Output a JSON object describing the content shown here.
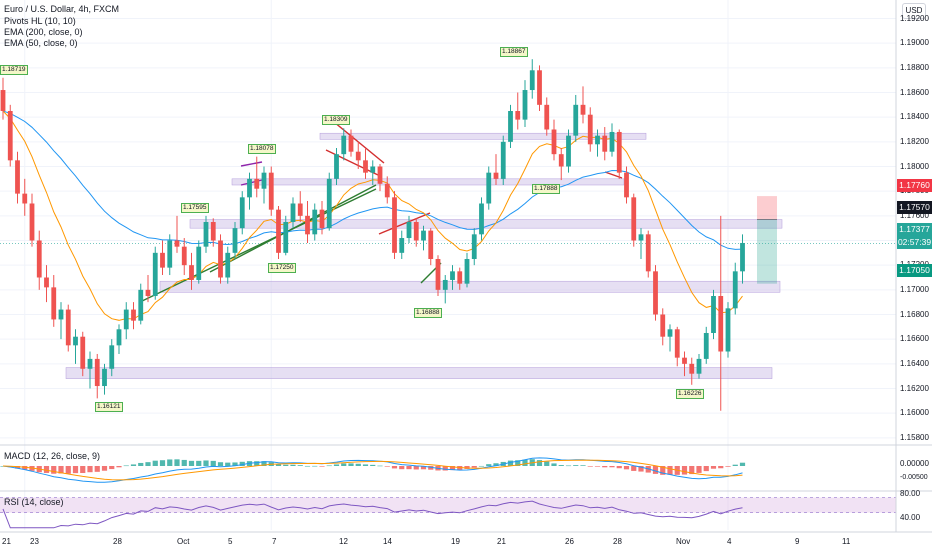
{
  "header": {
    "title": "Euro / U.S. Dollar, 4h, FXCM",
    "indicators": [
      "Pivots HL (10, 10)",
      "EMA (200, close, 0)",
      "EMA (50, close, 0)"
    ],
    "currency": "USD"
  },
  "price_scale": {
    "ticks": [
      "1.19200",
      "1.19000",
      "1.18800",
      "1.18600",
      "1.18400",
      "1.18200",
      "1.18000",
      "1.17800",
      "1.17600",
      "1.17400",
      "1.17200",
      "1.17000",
      "1.16800",
      "1.16600",
      "1.16400",
      "1.16200",
      "1.16000",
      "1.15800"
    ],
    "badges": {
      "stop": {
        "text": "1.17760",
        "color": "#f23645"
      },
      "entry": {
        "text": "1.17570",
        "color": "#131722"
      },
      "price": {
        "text": "1.17377",
        "color": "#26a69a"
      },
      "countdown": {
        "text": "02:57:39",
        "color": "#26a69a"
      },
      "target": {
        "text": "1.17050",
        "color": "#089981"
      }
    }
  },
  "time_axis": {
    "labels": [
      "21",
      "23",
      "28",
      "Oct",
      "5",
      "7",
      "12",
      "14",
      "19",
      "21",
      "26",
      "28",
      "Nov",
      "4",
      "9",
      "11"
    ]
  },
  "macd": {
    "label": "MACD (12, 26, close, 9)",
    "ticks": [
      "0.00000",
      "-0.00500"
    ]
  },
  "rsi": {
    "label": "RSI (14, close)",
    "ticks": [
      "80.00",
      "40.00"
    ]
  },
  "chart_data": {
    "type": "candlestick",
    "title": "Euro / U.S. Dollar, 4h, FXCM",
    "ylim": [
      1.1575,
      1.1935
    ],
    "last_price": 1.17377,
    "pivot_labels": [
      {
        "text": "1.18719",
        "price": 1.18719,
        "kind": "high"
      },
      {
        "text": "1.16121",
        "price": 1.16121,
        "kind": "low"
      },
      {
        "text": "1.17595",
        "price": 1.17595,
        "kind": "high"
      },
      {
        "text": "1.18078",
        "price": 1.18078,
        "kind": "high"
      },
      {
        "text": "1.17250",
        "price": 1.1725,
        "kind": "low"
      },
      {
        "text": "1.18309",
        "price": 1.18309,
        "kind": "high"
      },
      {
        "text": "1.16888",
        "price": 1.16888,
        "kind": "low"
      },
      {
        "text": "1.18867",
        "price": 1.18867,
        "kind": "high"
      },
      {
        "text": "1.17888",
        "price": 1.17888,
        "kind": "low"
      },
      {
        "text": "1.16226",
        "price": 1.16226,
        "kind": "low"
      }
    ],
    "support_resistance_zones": [
      [
        1.1628,
        1.1637
      ],
      [
        1.1698,
        1.1707
      ],
      [
        1.175,
        1.1757
      ],
      [
        1.1785,
        1.179
      ],
      [
        1.1822,
        1.1827
      ]
    ],
    "trade": {
      "stop": 1.1776,
      "entry": 1.1757,
      "target": 1.1705
    },
    "candles": [
      {
        "o": 1.1862,
        "h": 1.1872,
        "l": 1.1838,
        "c": 1.1845
      },
      {
        "o": 1.1845,
        "h": 1.185,
        "l": 1.18,
        "c": 1.1805
      },
      {
        "o": 1.1805,
        "h": 1.1812,
        "l": 1.177,
        "c": 1.1778
      },
      {
        "o": 1.1778,
        "h": 1.179,
        "l": 1.176,
        "c": 1.177
      },
      {
        "o": 1.177,
        "h": 1.1778,
        "l": 1.1735,
        "c": 1.174
      },
      {
        "o": 1.174,
        "h": 1.1748,
        "l": 1.17,
        "c": 1.171
      },
      {
        "o": 1.171,
        "h": 1.172,
        "l": 1.169,
        "c": 1.1702
      },
      {
        "o": 1.1702,
        "h": 1.1712,
        "l": 1.167,
        "c": 1.1676
      },
      {
        "o": 1.1676,
        "h": 1.169,
        "l": 1.166,
        "c": 1.1684
      },
      {
        "o": 1.1684,
        "h": 1.1688,
        "l": 1.165,
        "c": 1.1655
      },
      {
        "o": 1.1655,
        "h": 1.1668,
        "l": 1.164,
        "c": 1.1662
      },
      {
        "o": 1.1662,
        "h": 1.1666,
        "l": 1.163,
        "c": 1.1636
      },
      {
        "o": 1.1636,
        "h": 1.165,
        "l": 1.162,
        "c": 1.1644
      },
      {
        "o": 1.1644,
        "h": 1.1648,
        "l": 1.1612,
        "c": 1.1622
      },
      {
        "o": 1.1622,
        "h": 1.164,
        "l": 1.1615,
        "c": 1.1636
      },
      {
        "o": 1.1636,
        "h": 1.166,
        "l": 1.163,
        "c": 1.1655
      },
      {
        "o": 1.1655,
        "h": 1.1672,
        "l": 1.1648,
        "c": 1.1668
      },
      {
        "o": 1.1668,
        "h": 1.169,
        "l": 1.166,
        "c": 1.1684
      },
      {
        "o": 1.1684,
        "h": 1.169,
        "l": 1.1668,
        "c": 1.1675
      },
      {
        "o": 1.1675,
        "h": 1.1705,
        "l": 1.1672,
        "c": 1.17
      },
      {
        "o": 1.17,
        "h": 1.1712,
        "l": 1.169,
        "c": 1.1695
      },
      {
        "o": 1.1695,
        "h": 1.1735,
        "l": 1.1692,
        "c": 1.173
      },
      {
        "o": 1.173,
        "h": 1.174,
        "l": 1.1712,
        "c": 1.1718
      },
      {
        "o": 1.1718,
        "h": 1.1745,
        "l": 1.1712,
        "c": 1.174
      },
      {
        "o": 1.174,
        "h": 1.176,
        "l": 1.173,
        "c": 1.1735
      },
      {
        "o": 1.1735,
        "h": 1.1742,
        "l": 1.1712,
        "c": 1.172
      },
      {
        "o": 1.172,
        "h": 1.173,
        "l": 1.17,
        "c": 1.1708
      },
      {
        "o": 1.1708,
        "h": 1.174,
        "l": 1.1705,
        "c": 1.1735
      },
      {
        "o": 1.1735,
        "h": 1.176,
        "l": 1.173,
        "c": 1.1755
      },
      {
        "o": 1.1755,
        "h": 1.1758,
        "l": 1.1735,
        "c": 1.174
      },
      {
        "o": 1.174,
        "h": 1.1745,
        "l": 1.1705,
        "c": 1.171
      },
      {
        "o": 1.171,
        "h": 1.1735,
        "l": 1.1705,
        "c": 1.173
      },
      {
        "o": 1.173,
        "h": 1.1755,
        "l": 1.1725,
        "c": 1.175
      },
      {
        "o": 1.175,
        "h": 1.178,
        "l": 1.1745,
        "c": 1.1775
      },
      {
        "o": 1.1775,
        "h": 1.1795,
        "l": 1.1765,
        "c": 1.179
      },
      {
        "o": 1.179,
        "h": 1.1808,
        "l": 1.1775,
        "c": 1.1782
      },
      {
        "o": 1.1782,
        "h": 1.18,
        "l": 1.177,
        "c": 1.1795
      },
      {
        "o": 1.1795,
        "h": 1.18,
        "l": 1.176,
        "c": 1.1765
      },
      {
        "o": 1.1765,
        "h": 1.1768,
        "l": 1.1725,
        "c": 1.173
      },
      {
        "o": 1.173,
        "h": 1.176,
        "l": 1.1728,
        "c": 1.1755
      },
      {
        "o": 1.1755,
        "h": 1.1775,
        "l": 1.175,
        "c": 1.177
      },
      {
        "o": 1.177,
        "h": 1.178,
        "l": 1.1755,
        "c": 1.176
      },
      {
        "o": 1.176,
        "h": 1.1772,
        "l": 1.1738,
        "c": 1.1745
      },
      {
        "o": 1.1745,
        "h": 1.177,
        "l": 1.174,
        "c": 1.1765
      },
      {
        "o": 1.1765,
        "h": 1.1772,
        "l": 1.1745,
        "c": 1.175
      },
      {
        "o": 1.175,
        "h": 1.1795,
        "l": 1.1748,
        "c": 1.179
      },
      {
        "o": 1.179,
        "h": 1.1815,
        "l": 1.1785,
        "c": 1.181
      },
      {
        "o": 1.181,
        "h": 1.1831,
        "l": 1.1805,
        "c": 1.1825
      },
      {
        "o": 1.1825,
        "h": 1.183,
        "l": 1.1808,
        "c": 1.1812
      },
      {
        "o": 1.1812,
        "h": 1.182,
        "l": 1.1798,
        "c": 1.1805
      },
      {
        "o": 1.1805,
        "h": 1.1815,
        "l": 1.179,
        "c": 1.1795
      },
      {
        "o": 1.1795,
        "h": 1.1805,
        "l": 1.1785,
        "c": 1.18
      },
      {
        "o": 1.18,
        "h": 1.1802,
        "l": 1.178,
        "c": 1.1786
      },
      {
        "o": 1.1786,
        "h": 1.1792,
        "l": 1.177,
        "c": 1.1775
      },
      {
        "o": 1.1775,
        "h": 1.178,
        "l": 1.1725,
        "c": 1.173
      },
      {
        "o": 1.173,
        "h": 1.1748,
        "l": 1.1725,
        "c": 1.1742
      },
      {
        "o": 1.1742,
        "h": 1.176,
        "l": 1.1738,
        "c": 1.1755
      },
      {
        "o": 1.1755,
        "h": 1.1758,
        "l": 1.1735,
        "c": 1.174
      },
      {
        "o": 1.174,
        "h": 1.1752,
        "l": 1.1732,
        "c": 1.1748
      },
      {
        "o": 1.1748,
        "h": 1.175,
        "l": 1.172,
        "c": 1.1725
      },
      {
        "o": 1.1725,
        "h": 1.1728,
        "l": 1.1695,
        "c": 1.17
      },
      {
        "o": 1.17,
        "h": 1.1712,
        "l": 1.1689,
        "c": 1.1708
      },
      {
        "o": 1.1708,
        "h": 1.172,
        "l": 1.17,
        "c": 1.1715
      },
      {
        "o": 1.1715,
        "h": 1.1718,
        "l": 1.17,
        "c": 1.1705
      },
      {
        "o": 1.1705,
        "h": 1.173,
        "l": 1.1702,
        "c": 1.1725
      },
      {
        "o": 1.1725,
        "h": 1.175,
        "l": 1.172,
        "c": 1.1745
      },
      {
        "o": 1.1745,
        "h": 1.1775,
        "l": 1.174,
        "c": 1.177
      },
      {
        "o": 1.177,
        "h": 1.18,
        "l": 1.1765,
        "c": 1.1795
      },
      {
        "o": 1.1795,
        "h": 1.181,
        "l": 1.1785,
        "c": 1.179
      },
      {
        "o": 1.179,
        "h": 1.1825,
        "l": 1.1785,
        "c": 1.182
      },
      {
        "o": 1.182,
        "h": 1.185,
        "l": 1.1815,
        "c": 1.1845
      },
      {
        "o": 1.1845,
        "h": 1.186,
        "l": 1.183,
        "c": 1.1838
      },
      {
        "o": 1.1838,
        "h": 1.187,
        "l": 1.1832,
        "c": 1.1862
      },
      {
        "o": 1.1862,
        "h": 1.1887,
        "l": 1.1855,
        "c": 1.1878
      },
      {
        "o": 1.1878,
        "h": 1.1882,
        "l": 1.1845,
        "c": 1.185
      },
      {
        "o": 1.185,
        "h": 1.1856,
        "l": 1.1825,
        "c": 1.183
      },
      {
        "o": 1.183,
        "h": 1.1838,
        "l": 1.1805,
        "c": 1.181
      },
      {
        "o": 1.181,
        "h": 1.1815,
        "l": 1.1789,
        "c": 1.18
      },
      {
        "o": 1.18,
        "h": 1.183,
        "l": 1.1795,
        "c": 1.1825
      },
      {
        "o": 1.1825,
        "h": 1.1858,
        "l": 1.182,
        "c": 1.185
      },
      {
        "o": 1.185,
        "h": 1.1865,
        "l": 1.1835,
        "c": 1.1842
      },
      {
        "o": 1.1842,
        "h": 1.1848,
        "l": 1.1812,
        "c": 1.1818
      },
      {
        "o": 1.1818,
        "h": 1.183,
        "l": 1.1808,
        "c": 1.1825
      },
      {
        "o": 1.1825,
        "h": 1.1832,
        "l": 1.1805,
        "c": 1.1812
      },
      {
        "o": 1.1812,
        "h": 1.1835,
        "l": 1.1808,
        "c": 1.1828
      },
      {
        "o": 1.1828,
        "h": 1.183,
        "l": 1.179,
        "c": 1.1795
      },
      {
        "o": 1.1795,
        "h": 1.18,
        "l": 1.177,
        "c": 1.1775
      },
      {
        "o": 1.1775,
        "h": 1.1778,
        "l": 1.1735,
        "c": 1.174
      },
      {
        "o": 1.174,
        "h": 1.175,
        "l": 1.1725,
        "c": 1.1745
      },
      {
        "o": 1.1745,
        "h": 1.1748,
        "l": 1.171,
        "c": 1.1715
      },
      {
        "o": 1.1715,
        "h": 1.172,
        "l": 1.1675,
        "c": 1.168
      },
      {
        "o": 1.168,
        "h": 1.1685,
        "l": 1.1655,
        "c": 1.1662
      },
      {
        "o": 1.1662,
        "h": 1.1672,
        "l": 1.165,
        "c": 1.1668
      },
      {
        "o": 1.1668,
        "h": 1.167,
        "l": 1.1638,
        "c": 1.1645
      },
      {
        "o": 1.1645,
        "h": 1.165,
        "l": 1.163,
        "c": 1.164
      },
      {
        "o": 1.164,
        "h": 1.1645,
        "l": 1.1623,
        "c": 1.1632
      },
      {
        "o": 1.1632,
        "h": 1.1648,
        "l": 1.1628,
        "c": 1.1644
      },
      {
        "o": 1.1644,
        "h": 1.167,
        "l": 1.164,
        "c": 1.1665
      },
      {
        "o": 1.1665,
        "h": 1.17,
        "l": 1.166,
        "c": 1.1695
      },
      {
        "o": 1.1695,
        "h": 1.176,
        "l": 1.1602,
        "c": 1.165
      },
      {
        "o": 1.165,
        "h": 1.169,
        "l": 1.1645,
        "c": 1.1685
      },
      {
        "o": 1.1685,
        "h": 1.1722,
        "l": 1.168,
        "c": 1.1715
      },
      {
        "o": 1.1715,
        "h": 1.1745,
        "l": 1.1705,
        "c": 1.1738
      }
    ]
  }
}
